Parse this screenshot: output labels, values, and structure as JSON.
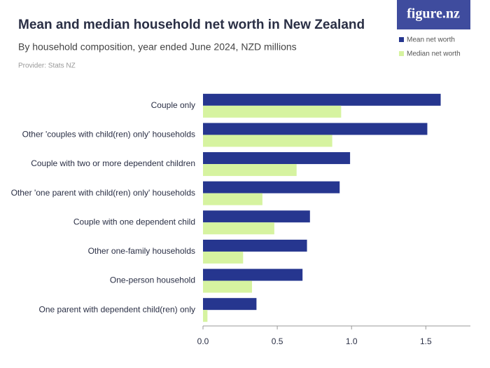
{
  "logo": "figure.nz",
  "chart_data": {
    "type": "hbar",
    "title": "Mean and median household net worth in New Zealand",
    "subtitle": "By household composition, year ended June 2024, NZD millions",
    "provider": "Provider: Stats NZ",
    "categories": [
      "Couple only",
      "Other 'couples with child(ren) only' households",
      "Couple with two or more dependent children",
      "Other 'one parent with child(ren) only' households",
      "Couple with one dependent child",
      "Other one-family households",
      "One-person household",
      "One parent with dependent child(ren) only"
    ],
    "series": [
      {
        "name": "Mean net worth",
        "color": "#26368f",
        "values": [
          1.6,
          1.51,
          0.99,
          0.92,
          0.72,
          0.7,
          0.67,
          0.36
        ]
      },
      {
        "name": "Median net worth",
        "color": "#d6f3a0",
        "values": [
          0.93,
          0.87,
          0.63,
          0.4,
          0.48,
          0.27,
          0.33,
          0.03
        ]
      }
    ],
    "xlim": [
      0,
      1.8
    ],
    "xticks": [
      {
        "value": 0,
        "label": "0.0"
      },
      0.5,
      {
        "value": 1,
        "label": "1.0"
      },
      1.5
    ],
    "legend": "top-right"
  }
}
